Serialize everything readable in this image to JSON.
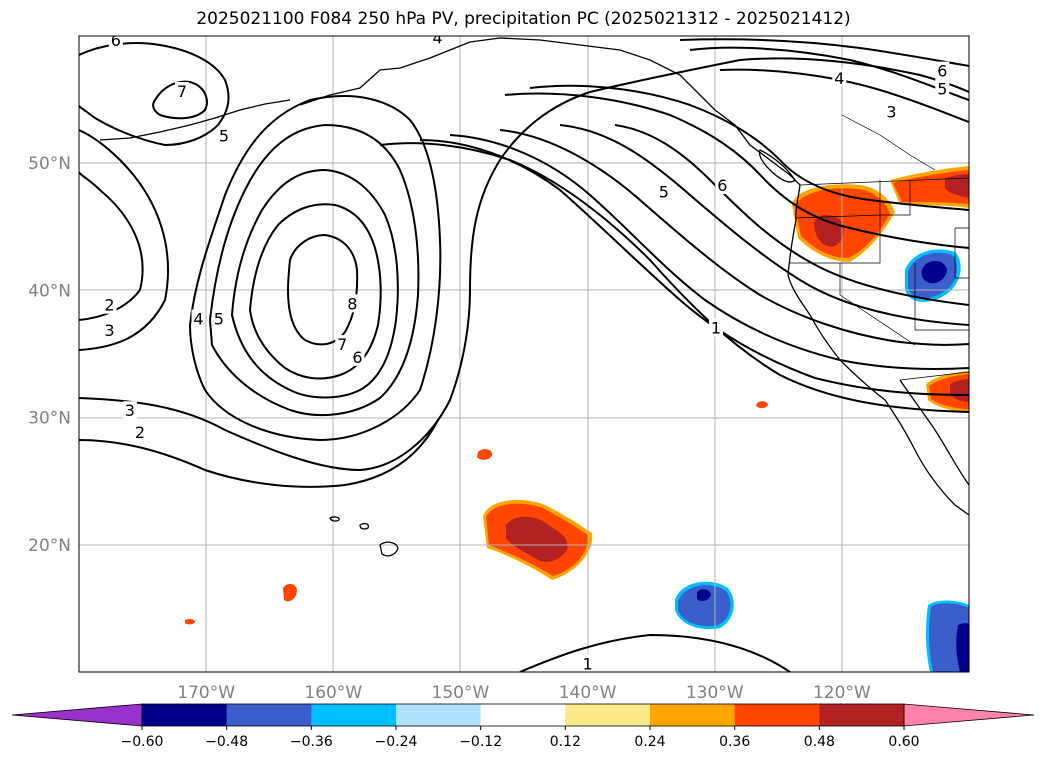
{
  "title": "2025021100 F084 250 hPa PV, precipitation PC (2025021312 - 2025021412)",
  "map": {
    "lon_range": [
      -180,
      -110
    ],
    "lat_range": [
      10,
      60
    ],
    "lon_ticks": [
      {
        "value": -170,
        "label": "170°W"
      },
      {
        "value": -160,
        "label": "160°W"
      },
      {
        "value": -150,
        "label": "150°W"
      },
      {
        "value": -140,
        "label": "140°W"
      },
      {
        "value": -130,
        "label": "130°W"
      },
      {
        "value": -120,
        "label": "120°W"
      }
    ],
    "lat_ticks": [
      {
        "value": 50,
        "label": "50°N"
      },
      {
        "value": 40,
        "label": "40°N"
      },
      {
        "value": 30,
        "label": "30°N"
      },
      {
        "value": 20,
        "label": "20°N"
      }
    ],
    "grid": true,
    "contour_labels": [
      {
        "text": "6",
        "lon": -177.1,
        "lat": 59.6
      },
      {
        "text": "7",
        "lon": -171.9,
        "lat": 55.6
      },
      {
        "text": "5",
        "lon": -168.6,
        "lat": 52.1
      },
      {
        "text": "2",
        "lon": -177.6,
        "lat": 38.8
      },
      {
        "text": "3",
        "lon": -177.6,
        "lat": 36.8
      },
      {
        "text": "4",
        "lon": -170.6,
        "lat": 37.7
      },
      {
        "text": "5",
        "lon": -169.0,
        "lat": 37.7
      },
      {
        "text": "8",
        "lon": -158.5,
        "lat": 38.9
      },
      {
        "text": "7",
        "lon": -159.3,
        "lat": 35.7
      },
      {
        "text": "6",
        "lon": -158.1,
        "lat": 34.7
      },
      {
        "text": "3",
        "lon": -176.0,
        "lat": 30.5
      },
      {
        "text": "2",
        "lon": -175.2,
        "lat": 28.8
      },
      {
        "text": "5",
        "lon": -134.0,
        "lat": 47.7
      },
      {
        "text": "6",
        "lon": -129.4,
        "lat": 48.2
      },
      {
        "text": "1",
        "lon": -129.9,
        "lat": 37.0
      },
      {
        "text": "4",
        "lon": -120.2,
        "lat": 56.6
      },
      {
        "text": "6",
        "lon": -112.1,
        "lat": 57.2
      },
      {
        "text": "5",
        "lon": -112.1,
        "lat": 55.8
      },
      {
        "text": "3",
        "lon": -116.1,
        "lat": 54.0
      },
      {
        "text": "4",
        "lon": -151.8,
        "lat": 59.8
      },
      {
        "text": "1",
        "lon": -140.0,
        "lat": 10.6
      }
    ]
  },
  "colorbar": {
    "colors": [
      "#9932cc",
      "#00008b",
      "#3a5fcd",
      "#00bfff",
      "#b0e2ff",
      "#ffffff",
      "#fce98a",
      "#ffa500",
      "#ff4500",
      "#b22222",
      "#ff82ab"
    ],
    "tick_labels": [
      "−0.60",
      "−0.48",
      "−0.36",
      "−0.24",
      "−0.12",
      "0.12",
      "0.24",
      "0.36",
      "0.48",
      "0.60"
    ]
  }
}
